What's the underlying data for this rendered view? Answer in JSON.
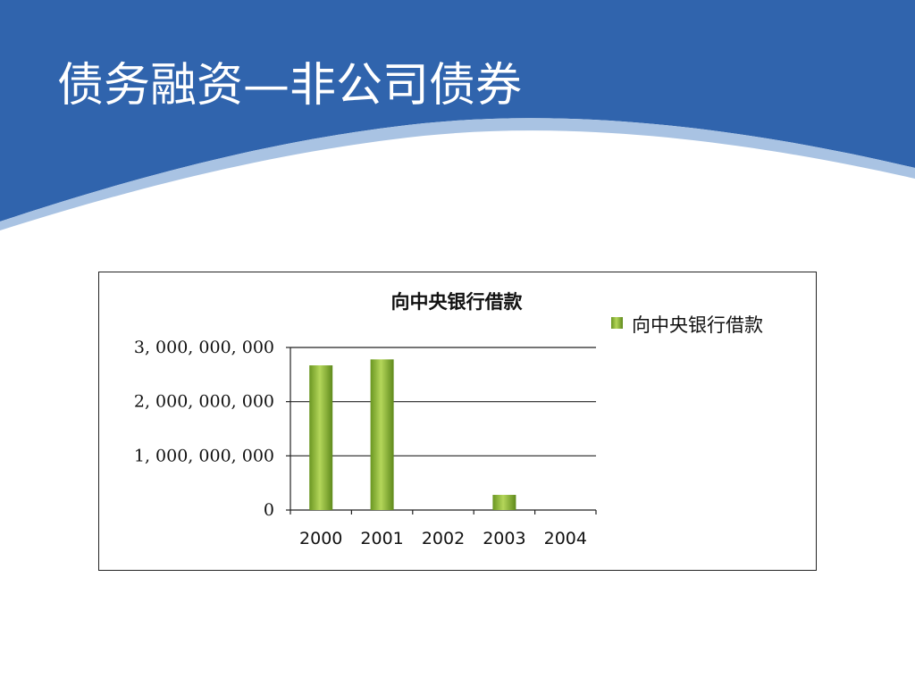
{
  "slide": {
    "title": "债务融资—非公司债券",
    "colors": {
      "header_blue": "#3064ad",
      "header_blue_dark": "#2a5aa0",
      "swoosh_light": "#a9c3e3",
      "bar_green": "#7aa52a",
      "bar_green_light": "#b4d65a"
    }
  },
  "chart_data": {
    "type": "bar",
    "title": "向中央银行借款",
    "categories": [
      "2000",
      "2001",
      "2002",
      "2003",
      "2004"
    ],
    "series": [
      {
        "name": "向中央银行借款",
        "values": [
          2670000000,
          2780000000,
          0,
          280000000,
          0
        ]
      }
    ],
    "xlabel": "",
    "ylabel": "",
    "ylim": [
      0,
      3000000000
    ],
    "yticks": [
      0,
      1000000000,
      2000000000,
      3000000000
    ],
    "ytick_labels": [
      "0",
      "1, 000, 000, 000",
      "2, 000, 000, 000",
      "3, 000, 000, 000"
    ],
    "grid": true,
    "legend": "top-right"
  }
}
